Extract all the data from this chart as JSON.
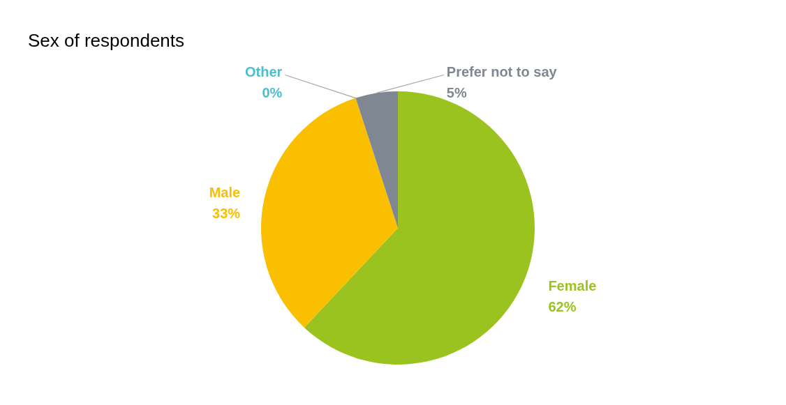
{
  "chart_data": {
    "type": "pie",
    "title": "Sex of respondents",
    "categories": [
      "Female",
      "Male",
      "Other",
      "Prefer not to say"
    ],
    "values": [
      62,
      33,
      0,
      5
    ],
    "value_labels": [
      "62%",
      "33%",
      "0%",
      "5%"
    ],
    "colors": [
      "#9bc31f",
      "#f9bf00",
      "#4bbfcf",
      "#7f8793"
    ],
    "legend": false
  }
}
